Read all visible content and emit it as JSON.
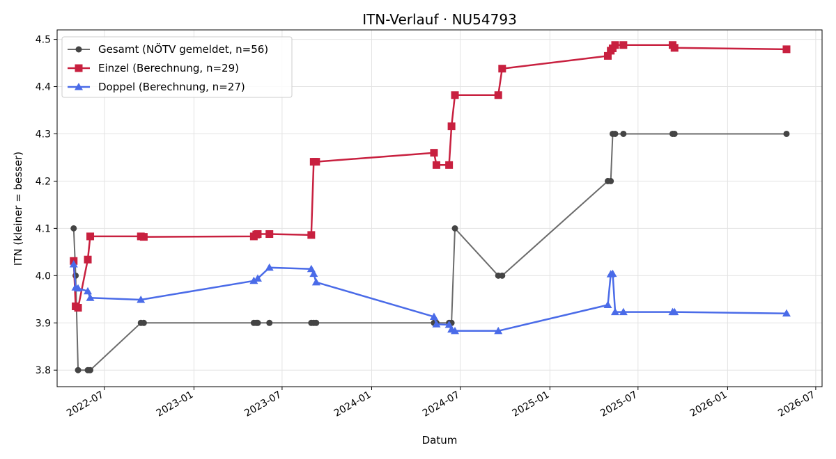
{
  "chart_data": {
    "type": "line",
    "title": "ITN-Verlauf · NU54793",
    "xlabel": "Datum",
    "ylabel": "ITN  (kleiner = besser)",
    "xlim": [
      "2022-03-26",
      "2026-07-14"
    ],
    "ylim": [
      3.765,
      4.52
    ],
    "x_ticks": [
      "2022-07",
      "2023-01",
      "2023-07",
      "2024-01",
      "2024-07",
      "2025-01",
      "2025-07",
      "2026-01",
      "2026-07"
    ],
    "y_ticks": [
      "3.8",
      "3.9",
      "4.0",
      "4.1",
      "4.2",
      "4.3",
      "4.4",
      "4.5"
    ],
    "grid": true,
    "legend_position": "top-left",
    "series": [
      {
        "name": "Gesamt (NÖTV gemeldet, n=56)",
        "color": "#6b6b6b",
        "marker": "circle",
        "points": [
          [
            "2022-04-29",
            4.1
          ],
          [
            "2022-05-03",
            4.0
          ],
          [
            "2022-05-08",
            3.8
          ],
          [
            "2022-05-28",
            3.8
          ],
          [
            "2022-06-02",
            3.8
          ],
          [
            "2022-09-14",
            3.9
          ],
          [
            "2022-09-20",
            3.9
          ],
          [
            "2023-05-04",
            3.9
          ],
          [
            "2023-05-09",
            3.9
          ],
          [
            "2023-05-12",
            3.9
          ],
          [
            "2023-06-05",
            3.9
          ],
          [
            "2023-08-30",
            3.9
          ],
          [
            "2023-09-04",
            3.9
          ],
          [
            "2023-09-09",
            3.9
          ],
          [
            "2024-05-08",
            3.9
          ],
          [
            "2024-05-13",
            3.9
          ],
          [
            "2024-06-08",
            3.9
          ],
          [
            "2024-06-13",
            3.9
          ],
          [
            "2024-06-20",
            4.1
          ],
          [
            "2024-09-17",
            4.0
          ],
          [
            "2024-09-25",
            4.0
          ],
          [
            "2025-04-30",
            4.2
          ],
          [
            "2025-05-06",
            4.2
          ],
          [
            "2025-05-10",
            4.3
          ],
          [
            "2025-05-15",
            4.3
          ],
          [
            "2025-06-01",
            4.3
          ],
          [
            "2025-09-10",
            4.3
          ],
          [
            "2025-09-14",
            4.3
          ],
          [
            "2026-05-02",
            4.3
          ]
        ]
      },
      {
        "name": "Einzel (Berechnung, n=29)",
        "color": "#c8203f",
        "marker": "square",
        "points": [
          [
            "2022-04-29",
            4.031
          ],
          [
            "2022-05-03",
            3.935
          ],
          [
            "2022-05-08",
            3.932
          ],
          [
            "2022-05-28",
            4.034
          ],
          [
            "2022-06-02",
            4.083
          ],
          [
            "2022-09-14",
            4.083
          ],
          [
            "2022-09-20",
            4.082
          ],
          [
            "2023-05-04",
            4.083
          ],
          [
            "2023-05-09",
            4.087
          ],
          [
            "2023-05-12",
            4.088
          ],
          [
            "2023-06-05",
            4.088
          ],
          [
            "2023-08-30",
            4.086
          ],
          [
            "2023-09-04",
            4.241
          ],
          [
            "2023-09-09",
            4.241
          ],
          [
            "2024-05-08",
            4.26
          ],
          [
            "2024-05-13",
            4.234
          ],
          [
            "2024-06-08",
            4.234
          ],
          [
            "2024-06-13",
            4.316
          ],
          [
            "2024-06-20",
            4.382
          ],
          [
            "2024-09-17",
            4.382
          ],
          [
            "2024-09-25",
            4.438
          ],
          [
            "2025-04-30",
            4.465
          ],
          [
            "2025-05-06",
            4.476
          ],
          [
            "2025-05-10",
            4.481
          ],
          [
            "2025-05-15",
            4.488
          ],
          [
            "2025-06-01",
            4.488
          ],
          [
            "2025-09-10",
            4.488
          ],
          [
            "2025-09-14",
            4.482
          ],
          [
            "2026-05-02",
            4.479
          ]
        ]
      },
      {
        "name": "Doppel (Berechnung, n=27)",
        "color": "#4a6be8",
        "marker": "triangle",
        "points": [
          [
            "2022-04-29",
            4.024
          ],
          [
            "2022-05-03",
            3.975
          ],
          [
            "2022-05-08",
            3.973
          ],
          [
            "2022-05-28",
            3.967
          ],
          [
            "2022-06-02",
            3.953
          ],
          [
            "2022-09-14",
            3.949
          ],
          [
            "2023-05-04",
            3.989
          ],
          [
            "2023-05-12",
            3.994
          ],
          [
            "2023-06-05",
            4.017
          ],
          [
            "2023-08-30",
            4.014
          ],
          [
            "2023-09-04",
            4.004
          ],
          [
            "2023-09-09",
            3.986
          ],
          [
            "2024-05-08",
            3.913
          ],
          [
            "2024-05-13",
            3.897
          ],
          [
            "2024-06-08",
            3.896
          ],
          [
            "2024-06-13",
            3.886
          ],
          [
            "2024-06-20",
            3.883
          ],
          [
            "2024-09-17",
            3.883
          ],
          [
            "2025-04-30",
            3.938
          ],
          [
            "2025-05-06",
            4.003
          ],
          [
            "2025-05-10",
            4.004
          ],
          [
            "2025-05-15",
            3.923
          ],
          [
            "2025-06-01",
            3.923
          ],
          [
            "2025-09-10",
            3.923
          ],
          [
            "2025-09-14",
            3.923
          ],
          [
            "2026-05-02",
            3.92
          ]
        ]
      }
    ]
  }
}
